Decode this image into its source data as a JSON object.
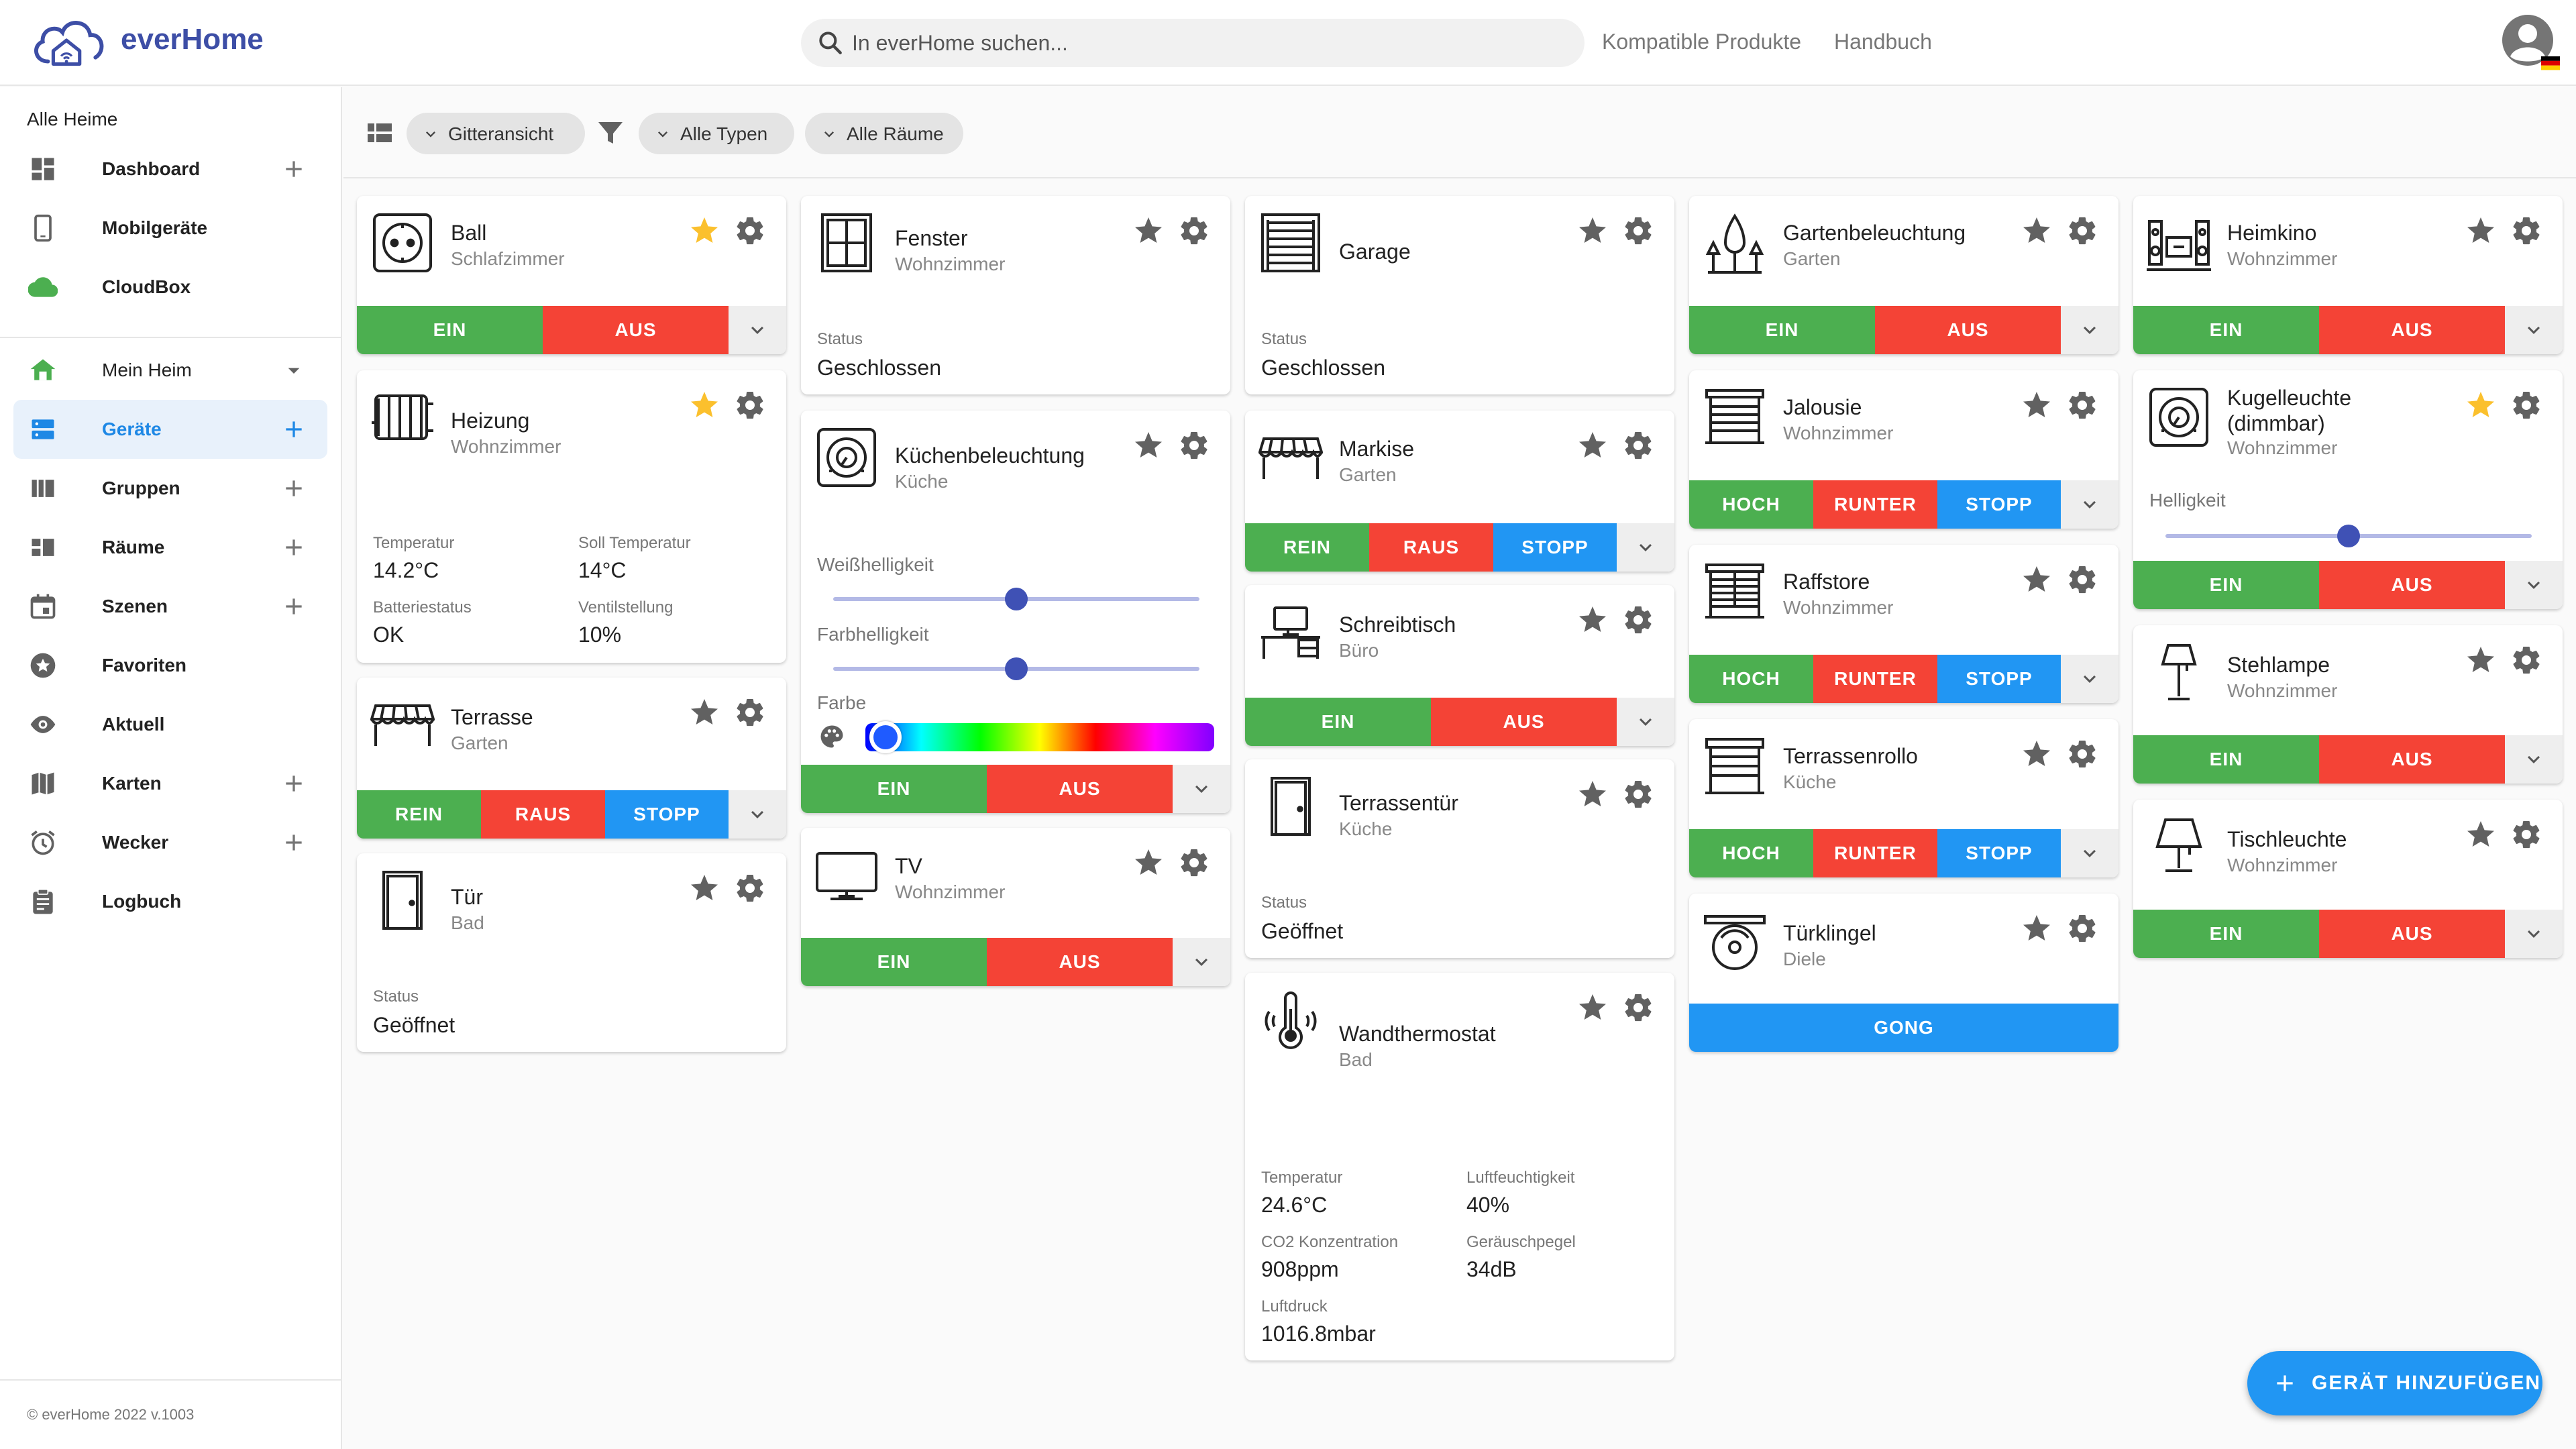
{
  "header": {
    "brand": "everHome",
    "search_placeholder": "In everHome suchen...",
    "links": [
      "Kompatible Produkte",
      "Handbuch"
    ]
  },
  "sidebar": {
    "all_homes": "Alle Heime",
    "top_items": [
      {
        "label": "Dashboard",
        "icon": "dashboard-icon",
        "plus": true
      },
      {
        "label": "Mobilgeräte",
        "icon": "phone-icon",
        "plus": false
      },
      {
        "label": "CloudBox",
        "icon": "cloud-icon",
        "plus": false
      }
    ],
    "home": {
      "label": "Mein Heim",
      "icon": "home-icon"
    },
    "items": [
      {
        "label": "Geräte",
        "icon": "devices-icon",
        "plus": true,
        "active": true
      },
      {
        "label": "Gruppen",
        "icon": "groups-icon",
        "plus": true
      },
      {
        "label": "Räume",
        "icon": "rooms-icon",
        "plus": true
      },
      {
        "label": "Szenen",
        "icon": "calendar-icon",
        "plus": true
      },
      {
        "label": "Favoriten",
        "icon": "star-circle-icon",
        "plus": false
      },
      {
        "label": "Aktuell",
        "icon": "eye-icon",
        "plus": false
      },
      {
        "label": "Karten",
        "icon": "map-icon",
        "plus": true
      },
      {
        "label": "Wecker",
        "icon": "alarm-icon",
        "plus": true
      },
      {
        "label": "Logbuch",
        "icon": "clipboard-icon",
        "plus": false
      }
    ],
    "footer": "© everHome 2022 v.1003"
  },
  "toolbar": {
    "view": "Gitteransicht",
    "types": "Alle Typen",
    "rooms": "Alle Räume"
  },
  "colors": {
    "green": "#4caf50",
    "red": "#f44336",
    "blue": "#2196f3",
    "star": "#fbc02d",
    "brand": "#3d4ea6"
  },
  "cards": {
    "ball": {
      "name": "Ball",
      "room": "Schlafzimmer",
      "fav": true,
      "btns": [
        "EIN",
        "AUS"
      ]
    },
    "heizung": {
      "name": "Heizung",
      "room": "Wohnzimmer",
      "fav": true,
      "stats": [
        {
          "label": "Temperatur",
          "value": "14.2°C"
        },
        {
          "label": "Soll Temperatur",
          "value": "14°C"
        },
        {
          "label": "Batteriestatus",
          "value": "OK"
        },
        {
          "label": "Ventilstellung",
          "value": "10%"
        }
      ]
    },
    "terrasse": {
      "name": "Terrasse",
      "room": "Garten",
      "btns": [
        "REIN",
        "RAUS",
        "STOPP"
      ]
    },
    "tuer": {
      "name": "Tür",
      "room": "Bad",
      "status_label": "Status",
      "status": "Geöffnet"
    },
    "fenster": {
      "name": "Fenster",
      "room": "Wohnzimmer",
      "status_label": "Status",
      "status": "Geschlossen"
    },
    "kueche": {
      "name": "Küchenbeleuchtung",
      "room": "Küche",
      "white_label": "Weißhelligkeit",
      "white_level": 0.5,
      "color_label": "Farbhelligkeit",
      "color_level": 0.5,
      "farbe_label": "Farbe",
      "btns": [
        "EIN",
        "AUS"
      ]
    },
    "tv": {
      "name": "TV",
      "room": "Wohnzimmer",
      "btns": [
        "EIN",
        "AUS"
      ]
    },
    "garage": {
      "name": "Garage",
      "status_label": "Status",
      "status": "Geschlossen"
    },
    "markise": {
      "name": "Markise",
      "room": "Garten",
      "btns": [
        "REIN",
        "RAUS",
        "STOPP"
      ]
    },
    "schreibtisch": {
      "name": "Schreibtisch",
      "room": "Büro",
      "btns": [
        "EIN",
        "AUS"
      ]
    },
    "terrassentuer": {
      "name": "Terrassentür",
      "room": "Küche",
      "status_label": "Status",
      "status": "Geöffnet"
    },
    "wandthermostat": {
      "name": "Wandthermostat",
      "room": "Bad",
      "stats": [
        {
          "label": "Temperatur",
          "value": "24.6°C"
        },
        {
          "label": "Luftfeuchtigkeit",
          "value": "40%"
        },
        {
          "label": "CO2 Konzentration",
          "value": "908ppm"
        },
        {
          "label": "Geräuschpegel",
          "value": "34dB"
        },
        {
          "label": "Luftdruck",
          "value": "1016.8mbar"
        }
      ]
    },
    "gartenbeleuchtung": {
      "name": "Gartenbeleuchtung",
      "room": "Garten",
      "btns": [
        "EIN",
        "AUS"
      ]
    },
    "jalousie": {
      "name": "Jalousie",
      "room": "Wohnzimmer",
      "btns": [
        "HOCH",
        "RUNTER",
        "STOPP"
      ]
    },
    "raffstore": {
      "name": "Raffstore",
      "room": "Wohnzimmer",
      "btns": [
        "HOCH",
        "RUNTER",
        "STOPP"
      ]
    },
    "terrassenrollo": {
      "name": "Terrassenrollo",
      "room": "Küche",
      "btns": [
        "HOCH",
        "RUNTER",
        "STOPP"
      ]
    },
    "tuerklingel": {
      "name": "Türklingel",
      "room": "Diele",
      "btn": "GONG"
    },
    "heimkino": {
      "name": "Heimkino",
      "room": "Wohnzimmer",
      "btns": [
        "EIN",
        "AUS"
      ]
    },
    "kugel": {
      "name1": "Kugelleuchte",
      "name2": "(dimmbar)",
      "room": "Wohnzimmer",
      "fav": true,
      "label": "Helligkeit",
      "level": 0.5,
      "btns": [
        "EIN",
        "AUS"
      ]
    },
    "stehlampe": {
      "name": "Stehlampe",
      "room": "Wohnzimmer",
      "btns": [
        "EIN",
        "AUS"
      ]
    },
    "tischleuchte": {
      "name": "Tischleuchte",
      "room": "Wohnzimmer",
      "btns": [
        "EIN",
        "AUS"
      ]
    }
  },
  "fab": {
    "label": "GERÄT HINZUFÜGEN"
  }
}
